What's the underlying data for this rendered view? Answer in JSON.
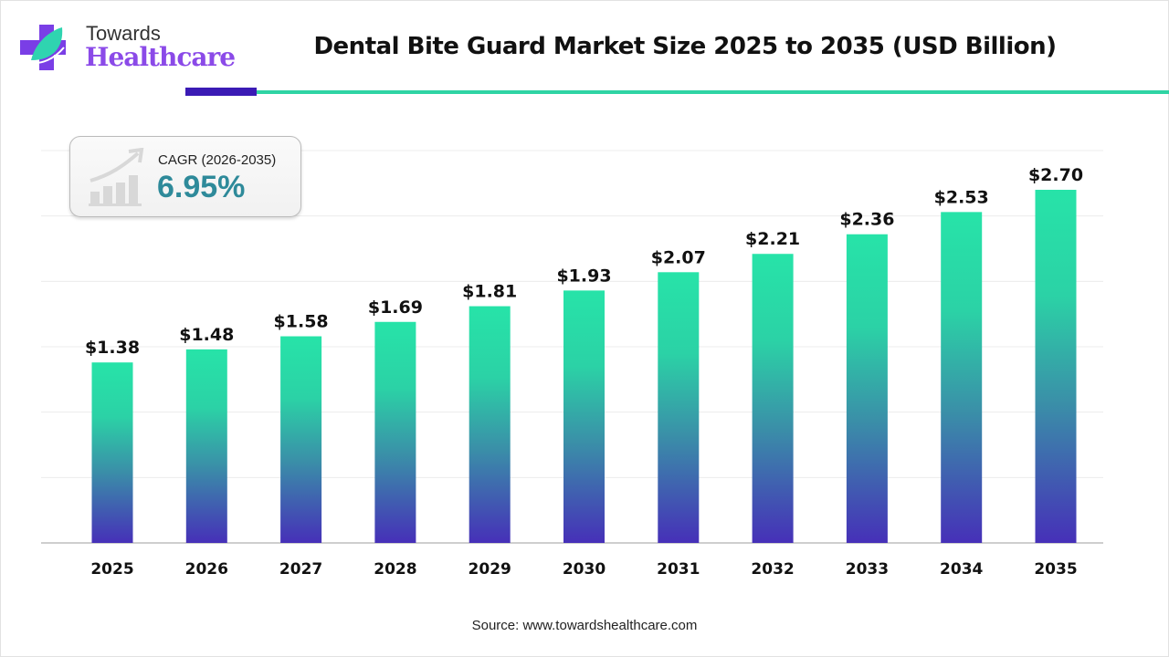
{
  "logo": {
    "line1": "Towards",
    "line2": "Healthcare"
  },
  "cagr": {
    "label": "CAGR (2026-2035)",
    "value": "6.95%",
    "icon": "growth-chart-icon"
  },
  "source": "Source: www.towardshealthcare.com",
  "colors": {
    "bar_top": "#27e3a8",
    "bar_bottom": "#4630b8",
    "cagr_value": "#2e8a9a",
    "accent_dark": "#3b1bb5",
    "accent_green": "#2fd4a4"
  },
  "chart_data": {
    "type": "bar",
    "title": "Dental Bite Guard Market Size 2025 to 2035 (USD Billion)",
    "categories": [
      "2025",
      "2026",
      "2027",
      "2028",
      "2029",
      "2030",
      "2031",
      "2032",
      "2033",
      "2034",
      "2035"
    ],
    "values": [
      1.38,
      1.48,
      1.58,
      1.69,
      1.81,
      1.93,
      2.07,
      2.21,
      2.36,
      2.53,
      2.7
    ],
    "data_labels": [
      "$1.38",
      "$1.48",
      "$1.58",
      "$1.69",
      "$1.81",
      "$1.93",
      "$2.07",
      "$2.21",
      "$2.36",
      "$2.53",
      "$2.70"
    ],
    "xlabel": "",
    "ylabel": "",
    "ylim": [
      0,
      3.0
    ],
    "grid": true,
    "y_axis_labels_shown": false
  }
}
